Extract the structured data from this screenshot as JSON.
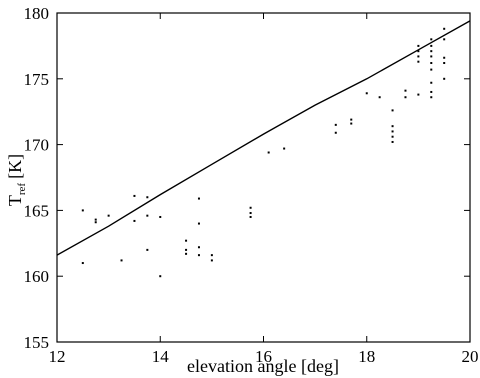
{
  "chart_data": {
    "type": "scatter",
    "title": "",
    "xlabel": "elevation angle [deg]",
    "ylabel": {
      "main": "T",
      "sub": "ref",
      "unit": "[K]"
    },
    "xlim": [
      12,
      20
    ],
    "ylim": [
      155,
      180
    ],
    "xticks": [
      12,
      14,
      16,
      18,
      20
    ],
    "yticks": [
      155,
      160,
      165,
      170,
      175,
      180
    ],
    "grid": false,
    "series": [
      {
        "kind": "points",
        "points": [
          [
            12.5,
            165.0
          ],
          [
            12.5,
            161.0
          ],
          [
            12.75,
            164.3
          ],
          [
            12.75,
            164.1
          ],
          [
            13.0,
            164.6
          ],
          [
            13.25,
            161.2
          ],
          [
            13.5,
            166.1
          ],
          [
            13.5,
            164.2
          ],
          [
            13.75,
            166.0
          ],
          [
            13.75,
            164.6
          ],
          [
            13.75,
            162.0
          ],
          [
            14.0,
            164.5
          ],
          [
            14.0,
            160.0
          ],
          [
            14.5,
            162.7
          ],
          [
            14.5,
            162.0
          ],
          [
            14.5,
            161.7
          ],
          [
            14.75,
            165.9
          ],
          [
            14.75,
            164.0
          ],
          [
            14.75,
            162.2
          ],
          [
            14.75,
            161.6
          ],
          [
            15.0,
            161.6
          ],
          [
            15.0,
            161.2
          ],
          [
            15.75,
            165.2
          ],
          [
            15.75,
            164.8
          ],
          [
            15.75,
            164.5
          ],
          [
            16.1,
            169.4
          ],
          [
            16.4,
            169.7
          ],
          [
            17.4,
            171.5
          ],
          [
            17.4,
            170.9
          ],
          [
            17.7,
            171.9
          ],
          [
            17.7,
            171.6
          ],
          [
            18.0,
            173.9
          ],
          [
            18.25,
            173.6
          ],
          [
            18.5,
            172.6
          ],
          [
            18.5,
            171.4
          ],
          [
            18.5,
            171.0
          ],
          [
            18.5,
            170.6
          ],
          [
            18.5,
            170.2
          ],
          [
            18.75,
            174.1
          ],
          [
            18.75,
            173.6
          ],
          [
            19.0,
            177.5
          ],
          [
            19.0,
            177.1
          ],
          [
            19.0,
            176.7
          ],
          [
            19.0,
            176.3
          ],
          [
            19.0,
            173.8
          ],
          [
            19.25,
            178.0
          ],
          [
            19.25,
            177.5
          ],
          [
            19.25,
            177.1
          ],
          [
            19.25,
            176.7
          ],
          [
            19.25,
            176.2
          ],
          [
            19.25,
            175.7
          ],
          [
            19.25,
            174.7
          ],
          [
            19.25,
            174.0
          ],
          [
            19.25,
            173.6
          ],
          [
            19.5,
            178.8
          ],
          [
            19.5,
            178.0
          ],
          [
            19.5,
            176.6
          ],
          [
            19.5,
            176.2
          ],
          [
            19.5,
            175.0
          ]
        ]
      },
      {
        "kind": "line",
        "points": [
          [
            12,
            161.6
          ],
          [
            13,
            163.8
          ],
          [
            14,
            166.2
          ],
          [
            15,
            168.5
          ],
          [
            16,
            170.8
          ],
          [
            17,
            173.0
          ],
          [
            18,
            175.0
          ],
          [
            19,
            177.2
          ],
          [
            20,
            179.4
          ]
        ]
      }
    ]
  }
}
